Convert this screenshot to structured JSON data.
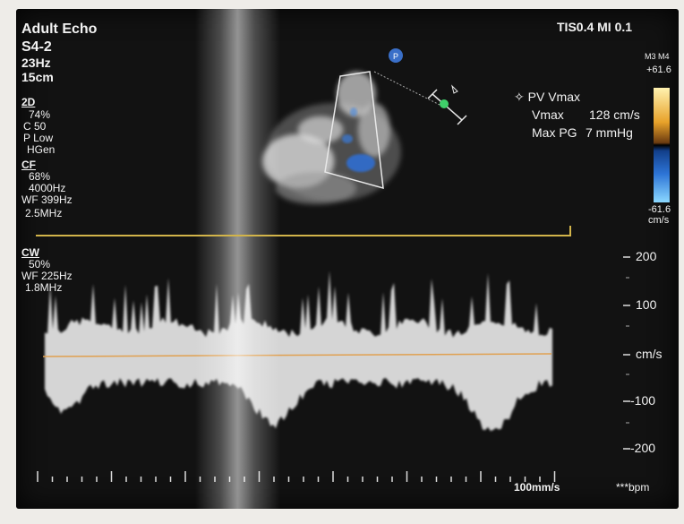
{
  "mode_title": "Adult Echo",
  "probe": "S4-2",
  "frame_rate": "23Hz",
  "depth": "15cm",
  "tis_mi": "TIS0.4  MI 0.1",
  "mode_2d": {
    "label": "2D",
    "gain": "74%",
    "contrast": "C 50",
    "power": "P Low",
    "freq": "HGen"
  },
  "mode_cf": {
    "label": "CF",
    "gain": "68%",
    "prf": "4000Hz",
    "wall_filter": "WF 399Hz",
    "freq": "2.5MHz"
  },
  "mode_cw": {
    "label": "CW",
    "gain": "50%",
    "wall_filter": "WF 225Hz",
    "freq": "1.8MHz"
  },
  "color_map_label": "M3 M4",
  "color_scale_top": "+61.6",
  "color_scale_bottom": "-61.6",
  "color_scale_unit": "cm/s",
  "measurement": {
    "title": "PV Vmax",
    "vmax_label": "Vmax",
    "vmax_value": "128 cm/s",
    "pg_label": "Max PG",
    "pg_value": "7 mmHg"
  },
  "doppler_scale": {
    "ticks": [
      "200",
      "100",
      "cm/s",
      "-100",
      "-200"
    ],
    "tick_values": [
      200,
      100,
      0,
      -100,
      -200
    ]
  },
  "sweep_speed": "100mm/s",
  "heart_rate": "***bpm",
  "colors": {
    "scale_bar": "#d2b44a",
    "baseline": "#e0a050",
    "sample_marker": "#3fcf6a"
  }
}
